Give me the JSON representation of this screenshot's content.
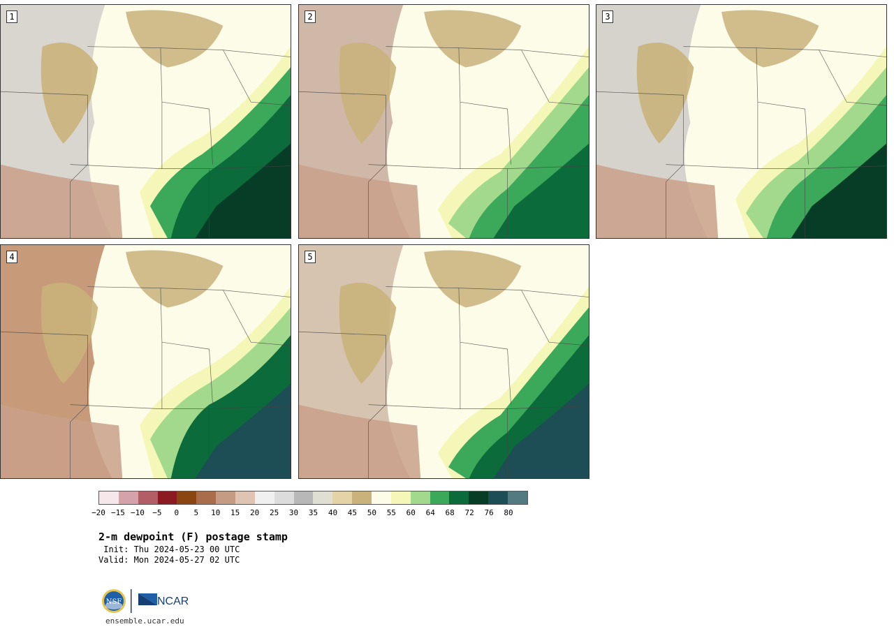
{
  "panels": [
    {
      "label": "1",
      "colors": [
        "#d9d6cf",
        "#c9b27b",
        "#fdfce8",
        "#f5f7b8",
        "#3ca85a",
        "#0b6b3a",
        "#073d26"
      ]
    },
    {
      "label": "2",
      "colors": [
        "#cfb8a8",
        "#c9b27b",
        "#fdfce8",
        "#f5f7b8",
        "#a3d98c",
        "#3ca85a",
        "#0b6b3a"
      ]
    },
    {
      "label": "3",
      "colors": [
        "#d6d2cc",
        "#c9b27b",
        "#fdfce8",
        "#f5f7b8",
        "#a3d98c",
        "#3ca85a",
        "#073d26"
      ]
    },
    {
      "label": "4",
      "colors": [
        "#c79b7a",
        "#c9b27b",
        "#fdfce8",
        "#f5f7b8",
        "#a3d98c",
        "#0b6b3a",
        "#1e4e55"
      ]
    },
    {
      "label": "5",
      "colors": [
        "#d6c3b0",
        "#c9b27b",
        "#fdfce8",
        "#f5f7b8",
        "#3ca85a",
        "#0b6b3a",
        "#1e4e55"
      ]
    }
  ],
  "colorbar": {
    "colors": [
      "#f6e8ea",
      "#d4a3a9",
      "#b35e66",
      "#8b1a22",
      "#8b4513",
      "#a86d4a",
      "#c49c84",
      "#e0c4b3",
      "#f0f0f0",
      "#dcdcdc",
      "#b8b8b8",
      "#e0dfd4",
      "#e5d3a8",
      "#c9b27b",
      "#fdfce8",
      "#f5f7b8",
      "#a3d98c",
      "#3ca85a",
      "#0b6b3a",
      "#073d26",
      "#1e4e55",
      "#527a80"
    ],
    "ticks": [
      "−20",
      "−15",
      "−10",
      "−5",
      "0",
      "5",
      "10",
      "15",
      "20",
      "25",
      "30",
      "35",
      "40",
      "45",
      "50",
      "55",
      "60",
      "64",
      "68",
      "72",
      "76",
      "80"
    ]
  },
  "title": "2-m dewpoint (F) postage stamp",
  "init": " Init: Thu 2024-05-23 00 UTC",
  "valid": "Valid: Mon 2024-05-27 02 UTC",
  "logos": {
    "nsf": "NSF",
    "ncar": "NCAR"
  },
  "website": "ensemble.ucar.edu"
}
